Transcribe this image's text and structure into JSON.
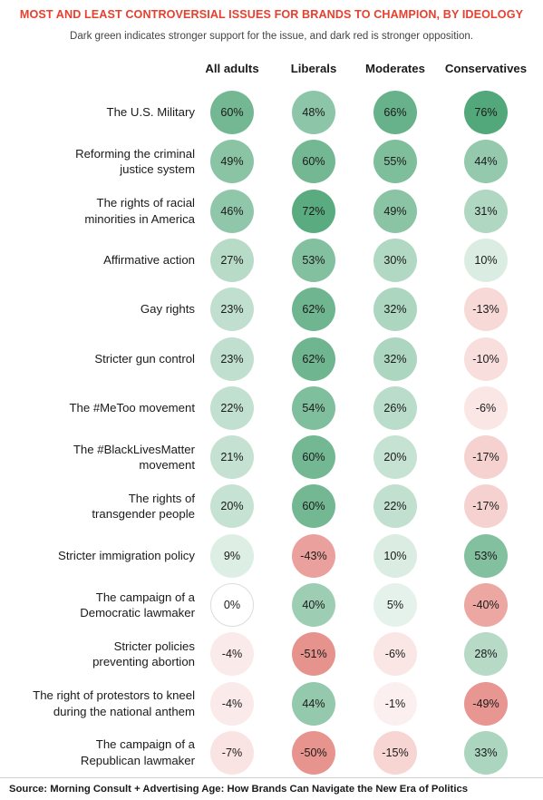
{
  "title": "MOST AND LEAST CONTROVERSIAL ISSUES FOR BRANDS TO CHAMPION, BY IDEOLOGY",
  "subtitle": "Dark green indicates stronger support for the issue, and dark red is stronger opposition.",
  "source": "Source: Morning Consult + Advertising Age: How Brands Can Navigate the New Era of Politics",
  "colors": {
    "positive": "#3f9e6b",
    "negative": "#d9534a",
    "title": "#e8402e"
  },
  "chart_data": {
    "type": "table",
    "columns": [
      "All adults",
      "Liberals",
      "Moderates",
      "Conservatives"
    ],
    "rows": [
      {
        "label": "The U.S. Military",
        "values": [
          60,
          48,
          66,
          76
        ]
      },
      {
        "label": "Reforming the criminal justice system",
        "values": [
          49,
          60,
          55,
          44
        ]
      },
      {
        "label": "The rights of racial minorities in America",
        "values": [
          46,
          72,
          49,
          31
        ]
      },
      {
        "label": "Affirmative action",
        "values": [
          27,
          53,
          30,
          10
        ]
      },
      {
        "label": "Gay rights",
        "values": [
          23,
          62,
          32,
          -13
        ]
      },
      {
        "label": "Stricter gun control",
        "values": [
          23,
          62,
          32,
          -10
        ]
      },
      {
        "label": "The #MeToo movement",
        "values": [
          22,
          54,
          26,
          -6
        ]
      },
      {
        "label": "The #BlackLivesMatter movement",
        "values": [
          21,
          60,
          20,
          -17
        ]
      },
      {
        "label": "The rights of transgender people",
        "values": [
          20,
          60,
          22,
          -17
        ]
      },
      {
        "label": "Stricter immigration policy",
        "values": [
          9,
          -43,
          10,
          53
        ]
      },
      {
        "label": "The campaign of a Democratic lawmaker",
        "values": [
          0,
          40,
          5,
          -40
        ]
      },
      {
        "label": "Stricter policies preventing abortion",
        "values": [
          -4,
          -51,
          -6,
          28
        ]
      },
      {
        "label": "The right of protestors to kneel during the national anthem",
        "values": [
          -4,
          44,
          -1,
          -49
        ]
      },
      {
        "label": "The campaign of a Republican lawmaker",
        "values": [
          -7,
          -50,
          -15,
          33
        ]
      }
    ],
    "unit": "%"
  }
}
